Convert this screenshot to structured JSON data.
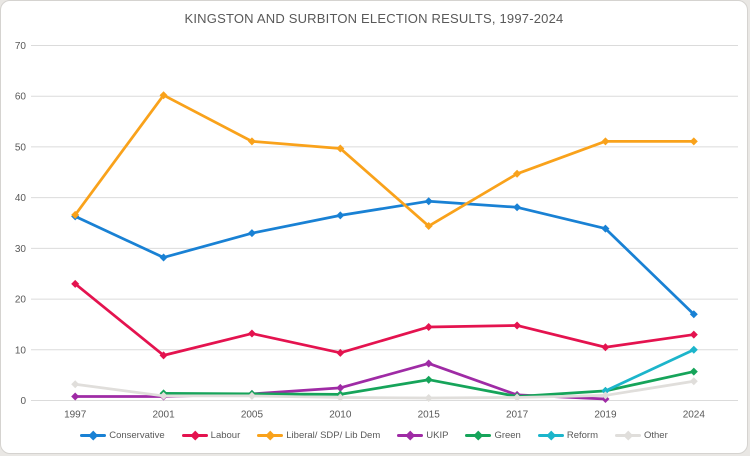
{
  "chart_data": {
    "type": "line",
    "title": "KINGSTON AND SURBITON ELECTION RESULTS, 1997-2024",
    "categories": [
      "1997",
      "2001",
      "2005",
      "2010",
      "2015",
      "2017",
      "2019",
      "2024"
    ],
    "series": [
      {
        "name": "Conservative",
        "color": "#1981d4",
        "values": [
          36.3,
          28.2,
          33.0,
          36.5,
          39.3,
          38.1,
          33.9,
          17.0
        ]
      },
      {
        "name": "Labour",
        "color": "#e4134f",
        "values": [
          23.0,
          8.9,
          13.2,
          9.4,
          14.5,
          14.8,
          10.5,
          13.0
        ]
      },
      {
        "name": "Liberal/ SDP/ Lib Dem",
        "color": "#f9a21b",
        "values": [
          36.6,
          60.2,
          51.1,
          49.7,
          34.4,
          44.7,
          51.1,
          51.1
        ]
      },
      {
        "name": "UKIP",
        "color": "#9f2ba5",
        "values": [
          0.8,
          0.8,
          1.3,
          2.5,
          7.3,
          1.1,
          0.3,
          null
        ]
      },
      {
        "name": "Green",
        "color": "#16a45a",
        "values": [
          null,
          1.4,
          1.3,
          1.2,
          4.1,
          0.8,
          1.9,
          5.7
        ]
      },
      {
        "name": "Reform",
        "color": "#1cb5cb",
        "values": [
          null,
          null,
          null,
          null,
          null,
          null,
          1.9,
          10.0
        ]
      },
      {
        "name": "Other",
        "color": "#e0dedb",
        "values": [
          3.2,
          0.9,
          0.9,
          0.6,
          0.5,
          0.6,
          1.0,
          3.8
        ]
      }
    ],
    "ylim": [
      0,
      70
    ],
    "yticks": [
      0,
      10,
      20,
      30,
      40,
      50,
      60,
      70
    ],
    "grid": true,
    "legend_position": "bottom",
    "marker": "diamond"
  },
  "colors": {
    "text": "#595959",
    "gridline": "#dbdbdb",
    "background": "#ffffff",
    "border": "#d5d3d0"
  }
}
